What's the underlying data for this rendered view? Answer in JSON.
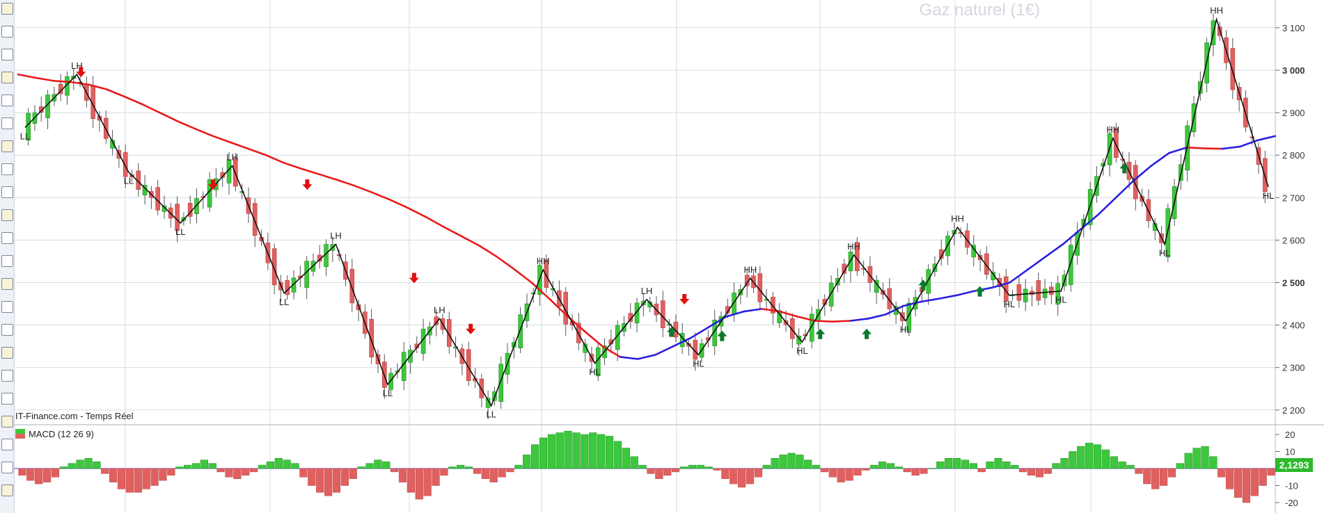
{
  "instrument_title": "Gaz naturel (1€)",
  "source_label": "IT-Finance.com - Temps Réel",
  "macd": {
    "label": "MACD (12 26 9)",
    "current_value": "2,1293",
    "value_badge_color": "#2db82d",
    "scale_min": -25,
    "scale_max": 25,
    "ticks": [
      "20",
      "10",
      "0",
      "-10",
      "-20"
    ]
  },
  "price_axis": {
    "ticks": [
      "3 100",
      "3 000",
      "2 900",
      "2 800",
      "2 700",
      "2 600",
      "2 500",
      "2 400",
      "2 300",
      "2 200"
    ]
  },
  "colors": {
    "up_candle": "#3cc83c",
    "down_candle": "#e06060",
    "ma_down": "#e81a1a",
    "ma_up": "#2a1ee0",
    "buy_arrow": "#0b7a2e",
    "sell_arrow": "#e01010",
    "zigzag": "#111111",
    "grid": "#d6dae2"
  },
  "toolbar_icons": [
    "pointer-icon",
    "bell-icon",
    "pencil-icon",
    "ruler-icon",
    "pen-icon",
    "magnet-icon",
    "line-icon",
    "line-icon",
    "line-icon",
    "hline-icon",
    "vline-icon",
    "channel-icon",
    "fibonacci-icon",
    "text-icon",
    "comment-icon",
    "rectangle-icon",
    "ellipse-icon",
    "arrow-icon",
    "gann-icon",
    "pitchfork-icon",
    "fan-icon",
    "delete-icon"
  ],
  "chart_data": {
    "type": "candlestick",
    "title": "Gaz naturel (1€)",
    "ylim": [
      2160,
      3140
    ],
    "swing_points": [
      {
        "label": "LL",
        "price": 2865,
        "below": true
      },
      {
        "label": "LH",
        "price": 2990,
        "below": false
      },
      {
        "label": "LL",
        "price": 2760,
        "below": true
      },
      {
        "label": "LL",
        "price": 2640,
        "below": true
      },
      {
        "label": "LH",
        "price": 2775,
        "below": false
      },
      {
        "label": "LL",
        "price": 2475,
        "below": true
      },
      {
        "label": "LH",
        "price": 2590,
        "below": false
      },
      {
        "label": "LL",
        "price": 2260,
        "below": true
      },
      {
        "label": "LH",
        "price": 2415,
        "below": false
      },
      {
        "label": "LL",
        "price": 2210,
        "below": true
      },
      {
        "label": "HH",
        "price": 2530,
        "below": false
      },
      {
        "label": "HL",
        "price": 2310,
        "below": true
      },
      {
        "label": "LH",
        "price": 2460,
        "below": false
      },
      {
        "label": "HL",
        "price": 2330,
        "below": true
      },
      {
        "label": "HH",
        "price": 2510,
        "below": false
      },
      {
        "label": "HL",
        "price": 2360,
        "below": true
      },
      {
        "label": "HH",
        "price": 2565,
        "below": false
      },
      {
        "label": "HL",
        "price": 2410,
        "below": true
      },
      {
        "label": "HH",
        "price": 2630,
        "below": false
      },
      {
        "label": "HL",
        "price": 2470,
        "below": true
      },
      {
        "label": "HL",
        "price": 2480,
        "below": true
      },
      {
        "label": "HH",
        "price": 2840,
        "below": false
      },
      {
        "label": "HL",
        "price": 2590,
        "below": true
      },
      {
        "label": "HH",
        "price": 3120,
        "below": false
      },
      {
        "label": "HL",
        "price": 2725,
        "below": true
      }
    ],
    "moving_average": [
      2990,
      2982,
      2975,
      2972,
      2966,
      2955,
      2938,
      2920,
      2900,
      2880,
      2862,
      2845,
      2830,
      2815,
      2800,
      2782,
      2768,
      2755,
      2742,
      2728,
      2712,
      2695,
      2676,
      2655,
      2632,
      2610,
      2588,
      2562,
      2532,
      2500,
      2462,
      2422,
      2385,
      2350,
      2325,
      2320,
      2330,
      2350,
      2370,
      2395,
      2420,
      2432,
      2438,
      2432,
      2420,
      2410,
      2408,
      2410,
      2415,
      2425,
      2445,
      2455,
      2462,
      2470,
      2480,
      2488,
      2500,
      2530,
      2560,
      2590,
      2625,
      2660,
      2700,
      2740,
      2775,
      2805,
      2818,
      2816,
      2815,
      2820,
      2835,
      2845
    ],
    "ma_trend": [
      "down",
      "down",
      "down",
      "down",
      "down",
      "down",
      "down",
      "down",
      "down",
      "down",
      "down",
      "down",
      "down",
      "down",
      "down",
      "down",
      "down",
      "down",
      "down",
      "down",
      "down",
      "down",
      "down",
      "down",
      "down",
      "down",
      "down",
      "down",
      "down",
      "down",
      "down",
      "down",
      "down",
      "down",
      "up",
      "up",
      "up",
      "up",
      "up",
      "up",
      "up",
      "up",
      "down",
      "down",
      "down",
      "down",
      "down",
      "up",
      "up",
      "up",
      "up",
      "up",
      "up",
      "up",
      "up",
      "up",
      "up",
      "up",
      "up",
      "up",
      "up",
      "up",
      "up",
      "up",
      "up",
      "up",
      "down",
      "down",
      "up",
      "up",
      "up",
      "up"
    ],
    "signals": [
      {
        "type": "sell",
        "price": 2985
      },
      {
        "type": "sell",
        "price": 2720
      },
      {
        "type": "sell",
        "price": 2720
      },
      {
        "type": "sell",
        "price": 2500
      },
      {
        "type": "sell",
        "price": 2380
      },
      {
        "type": "sell",
        "price": 2450
      },
      {
        "type": "buy",
        "price": 2395
      },
      {
        "type": "buy",
        "price": 2385
      },
      {
        "type": "buy",
        "price": 2390
      },
      {
        "type": "buy",
        "price": 2390
      },
      {
        "type": "buy",
        "price": 2505
      },
      {
        "type": "buy",
        "price": 2490
      },
      {
        "type": "buy",
        "price": 2780
      }
    ],
    "macd_histogram": [
      -4,
      -7,
      -9,
      -8,
      -5,
      1,
      3,
      5,
      6,
      4,
      -3,
      -8,
      -12,
      -14,
      -14,
      -12,
      -10,
      -7,
      -4,
      1,
      2,
      3,
      5,
      3,
      -2,
      -5,
      -6,
      -4,
      -2,
      2,
      4,
      6,
      5,
      3,
      -5,
      -10,
      -14,
      -16,
      -14,
      -10,
      -6,
      1,
      3,
      5,
      4,
      -2,
      -8,
      -14,
      -18,
      -16,
      -10,
      -4,
      1,
      2,
      1,
      -3,
      -6,
      -8,
      -5,
      -2,
      2,
      8,
      14,
      18,
      20,
      21,
      22,
      21,
      20,
      21,
      20,
      19,
      16,
      12,
      7,
      2,
      -3,
      -6,
      -4,
      -2,
      1,
      2,
      2,
      1,
      -1,
      -6,
      -9,
      -11,
      -9,
      -5,
      2,
      6,
      8,
      9,
      8,
      5,
      2,
      -2,
      -5,
      -8,
      -7,
      -4,
      -1,
      2,
      4,
      3,
      1,
      -2,
      -4,
      -3,
      0,
      4,
      6,
      6,
      5,
      3,
      -2,
      4,
      6,
      4,
      2,
      -2,
      -4,
      -5,
      -3,
      3,
      6,
      10,
      13,
      15,
      14,
      11,
      7,
      4,
      2,
      -3,
      -9,
      -12,
      -10,
      -5,
      3,
      9,
      12,
      13,
      7,
      -5,
      -12,
      -17,
      -20,
      -16,
      -10,
      -4
    ]
  }
}
